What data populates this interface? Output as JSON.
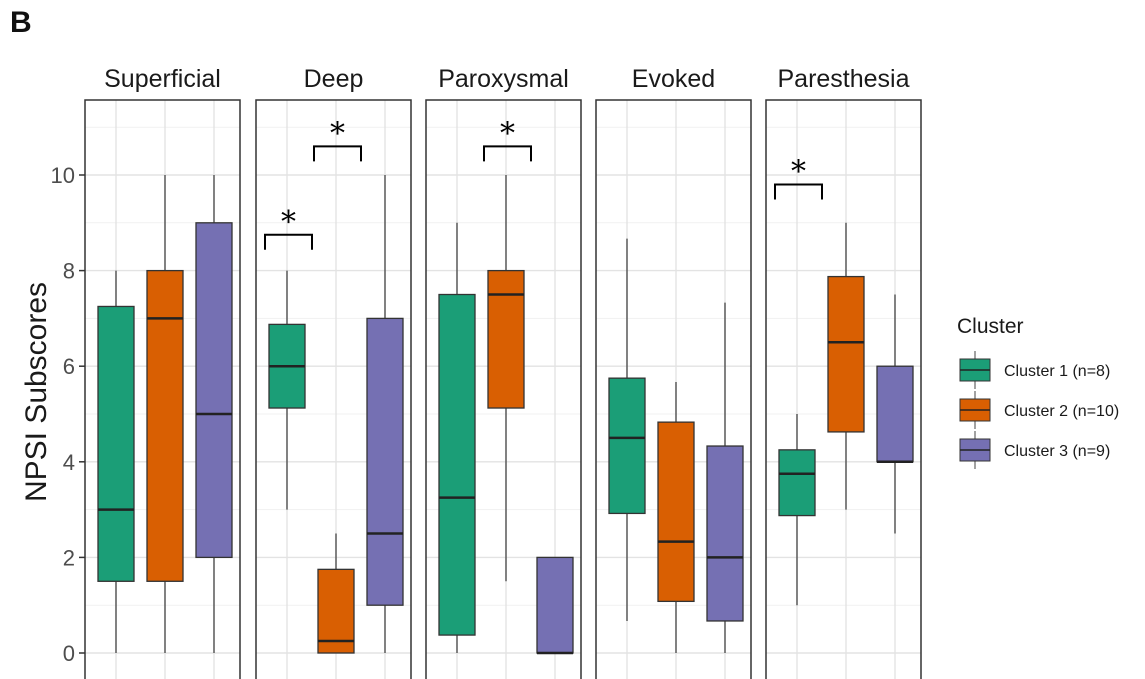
{
  "panel_label": "B",
  "chart_data": {
    "type": "boxplot",
    "ylabel": "NPSI Subscores",
    "ylim": [
      -0.5,
      11.5
    ],
    "yticks": [
      0,
      2,
      4,
      6,
      8,
      10
    ],
    "grid": true,
    "legend_position": "right",
    "legend_title": "Cluster",
    "series": [
      {
        "name": "Cluster 1 (n=8)",
        "color": "#1b9e77"
      },
      {
        "name": "Cluster 2 (n=10)",
        "color": "#d95f02"
      },
      {
        "name": "Cluster 3 (n=9)",
        "color": "#7570b3"
      }
    ],
    "facets": [
      {
        "label": "Superficial",
        "boxes": [
          {
            "min": 0,
            "q1": 1.5,
            "median": 3,
            "q3": 7.25,
            "max": 8
          },
          {
            "min": 0,
            "q1": 1.5,
            "median": 7,
            "q3": 8,
            "max": 10
          },
          {
            "min": 0,
            "q1": 2,
            "median": 5,
            "q3": 9,
            "max": 10
          }
        ],
        "significance": []
      },
      {
        "label": "Deep",
        "boxes": [
          {
            "min": 3,
            "q1": 5.125,
            "median": 6,
            "q3": 6.875,
            "max": 8
          },
          {
            "min": 0,
            "q1": 0,
            "median": 0.25,
            "q3": 1.75,
            "max": 2.5
          },
          {
            "min": 0,
            "q1": 1,
            "median": 2.5,
            "q3": 7,
            "max": 10
          }
        ],
        "significance": [
          {
            "groups": [
              1,
              2
            ],
            "label": "*",
            "y": 8.75
          },
          {
            "groups": [
              2,
              3
            ],
            "label": "*",
            "y": 10.6
          }
        ]
      },
      {
        "label": "Paroxysmal",
        "boxes": [
          {
            "min": 0,
            "q1": 0.375,
            "median": 3.25,
            "q3": 7.5,
            "max": 9
          },
          {
            "min": 1.5,
            "q1": 5.125,
            "median": 7.5,
            "q3": 8,
            "max": 10
          },
          {
            "min": 0,
            "q1": 0,
            "median": 0,
            "q3": 2,
            "max": 2
          }
        ],
        "significance": [
          {
            "groups": [
              2,
              3
            ],
            "label": "*",
            "y": 10.6
          }
        ]
      },
      {
        "label": "Evoked",
        "boxes": [
          {
            "min": 0.67,
            "q1": 2.92,
            "median": 4.5,
            "q3": 5.75,
            "max": 8.67
          },
          {
            "min": 0,
            "q1": 1.08,
            "median": 2.33,
            "q3": 4.83,
            "max": 5.67
          },
          {
            "min": 0,
            "q1": 0.67,
            "median": 2,
            "q3": 4.33,
            "max": 7.33
          }
        ],
        "significance": []
      },
      {
        "label": "Paresthesia",
        "boxes": [
          {
            "min": 1,
            "q1": 2.875,
            "median": 3.75,
            "q3": 4.25,
            "max": 5
          },
          {
            "min": 3,
            "q1": 4.625,
            "median": 6.5,
            "q3": 7.875,
            "max": 9
          },
          {
            "min": 2.5,
            "q1": 4,
            "median": 4,
            "q3": 6,
            "max": 7.5
          }
        ],
        "significance": [
          {
            "groups": [
              1,
              2
            ],
            "label": "*",
            "y": 9.8
          }
        ]
      }
    ]
  }
}
